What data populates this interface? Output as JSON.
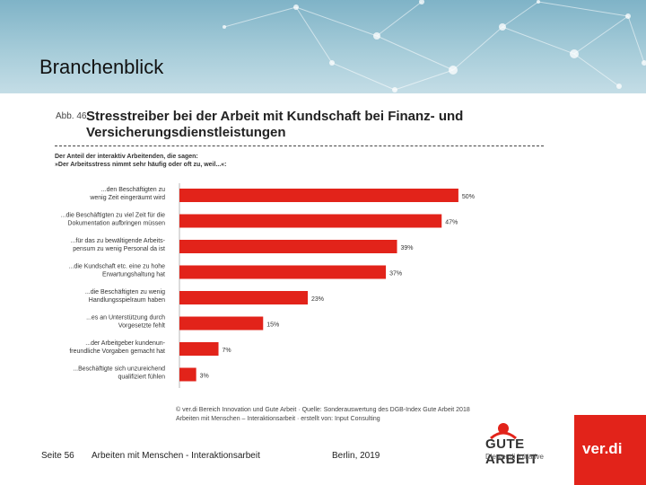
{
  "slide": {
    "title": "Branchenblick"
  },
  "figure": {
    "label": "Abb. 46",
    "title_line1": "Stresstreiber bei der Arbeit mit Kundschaft bei Finanz- und",
    "title_line2": "Versicherungsdienstleistungen",
    "sub_line1": "Der Anteil der interaktiv Arbeitenden, die sagen:",
    "sub_line2": "»Der Arbeitsstress nimmt sehr häufig oder oft zu, weil...«:",
    "source_line1": "© ver.di Bereich Innovation und Gute Arbeit · Quelle: Sonderauswertung des DGB-Index Gute Arbeit 2018",
    "source_line2": "Arbeiten mit Menschen – Interaktionsarbeit · erstellt von: Input Consulting"
  },
  "chart_data": {
    "type": "bar",
    "orientation": "horizontal",
    "categories": [
      [
        "...den Beschäftigten zu",
        "wenig Zeit eingeräumt wird"
      ],
      [
        "...die Beschäftigten zu viel Zeit für die",
        "Dokumentation aufbringen müssen"
      ],
      [
        "...für das zu bewältigende Arbeits-",
        "pensum zu wenig Personal da ist"
      ],
      [
        "...die Kundschaft etc. eine zu hohe",
        "Erwartungshaltung hat"
      ],
      [
        "...die Beschäftigten zu wenig",
        "Handlungsspielraum haben"
      ],
      [
        "...es an Unterstützung durch",
        "Vorgesetzte fehlt"
      ],
      [
        "...der Arbeitgeber kundenun-",
        "freundliche Vorgaben gemacht hat"
      ],
      [
        "...Beschäftigte sich unzureichend",
        "qualifiziert fühlen"
      ]
    ],
    "values": [
      50,
      47,
      39,
      37,
      23,
      15,
      7,
      3
    ],
    "value_labels": [
      "50%",
      "47%",
      "39%",
      "37%",
      "23%",
      "15%",
      "7%",
      "3%"
    ],
    "bar_color": "#e2231a",
    "xlim": [
      0,
      55
    ]
  },
  "footer": {
    "page": "Seite 56",
    "topic": "Arbeiten mit Menschen - Interaktionsarbeit",
    "place_date": "Berlin, 2019"
  },
  "logos": {
    "gute_arbeit": "GUTE ARBEIT",
    "gute_arbeit_sub": "Die ver.di Initiative",
    "verdi": "ver.di"
  },
  "colors": {
    "banner": "#9fc7d6",
    "accent": "#e2231a"
  }
}
